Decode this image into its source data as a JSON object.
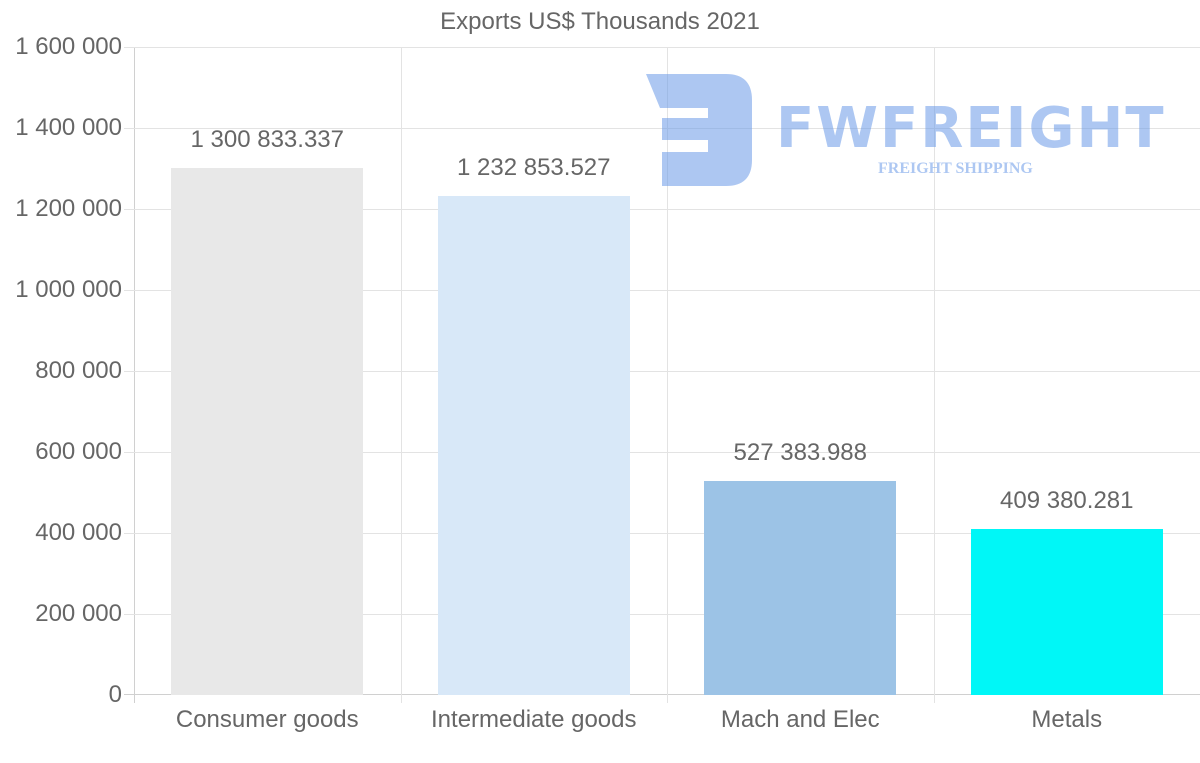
{
  "chart_data": {
    "type": "bar",
    "title": "Exports US$ Thousands 2021",
    "xlabel": "",
    "ylabel": "",
    "categories": [
      "Consumer goods",
      "Intermediate goods",
      "Mach and Elec",
      "Metals"
    ],
    "values": [
      1300833.337,
      1232853.527,
      527383.988,
      409380.281
    ],
    "value_labels": [
      "1 300 833.337",
      "1 232 853.527",
      "527 383.988",
      "409 380.281"
    ],
    "colors": [
      "#e8e8e8",
      "#d8e8f8",
      "#9cc3e6",
      "#00f7f7"
    ],
    "ylim": [
      0,
      1600000
    ],
    "yticks": [
      0,
      200000,
      400000,
      600000,
      800000,
      1000000,
      1200000,
      1400000,
      1600000
    ],
    "ytick_labels": [
      "0",
      "200 000",
      "400 000",
      "600 000",
      "800 000",
      "1 000 000",
      "1 200 000",
      "1 400 000",
      "1 600 000"
    ],
    "grid": true,
    "legend": null
  },
  "watermark": {
    "brand": "FWFREIGHT",
    "tagline": "FREIGHT SHIPPING"
  }
}
